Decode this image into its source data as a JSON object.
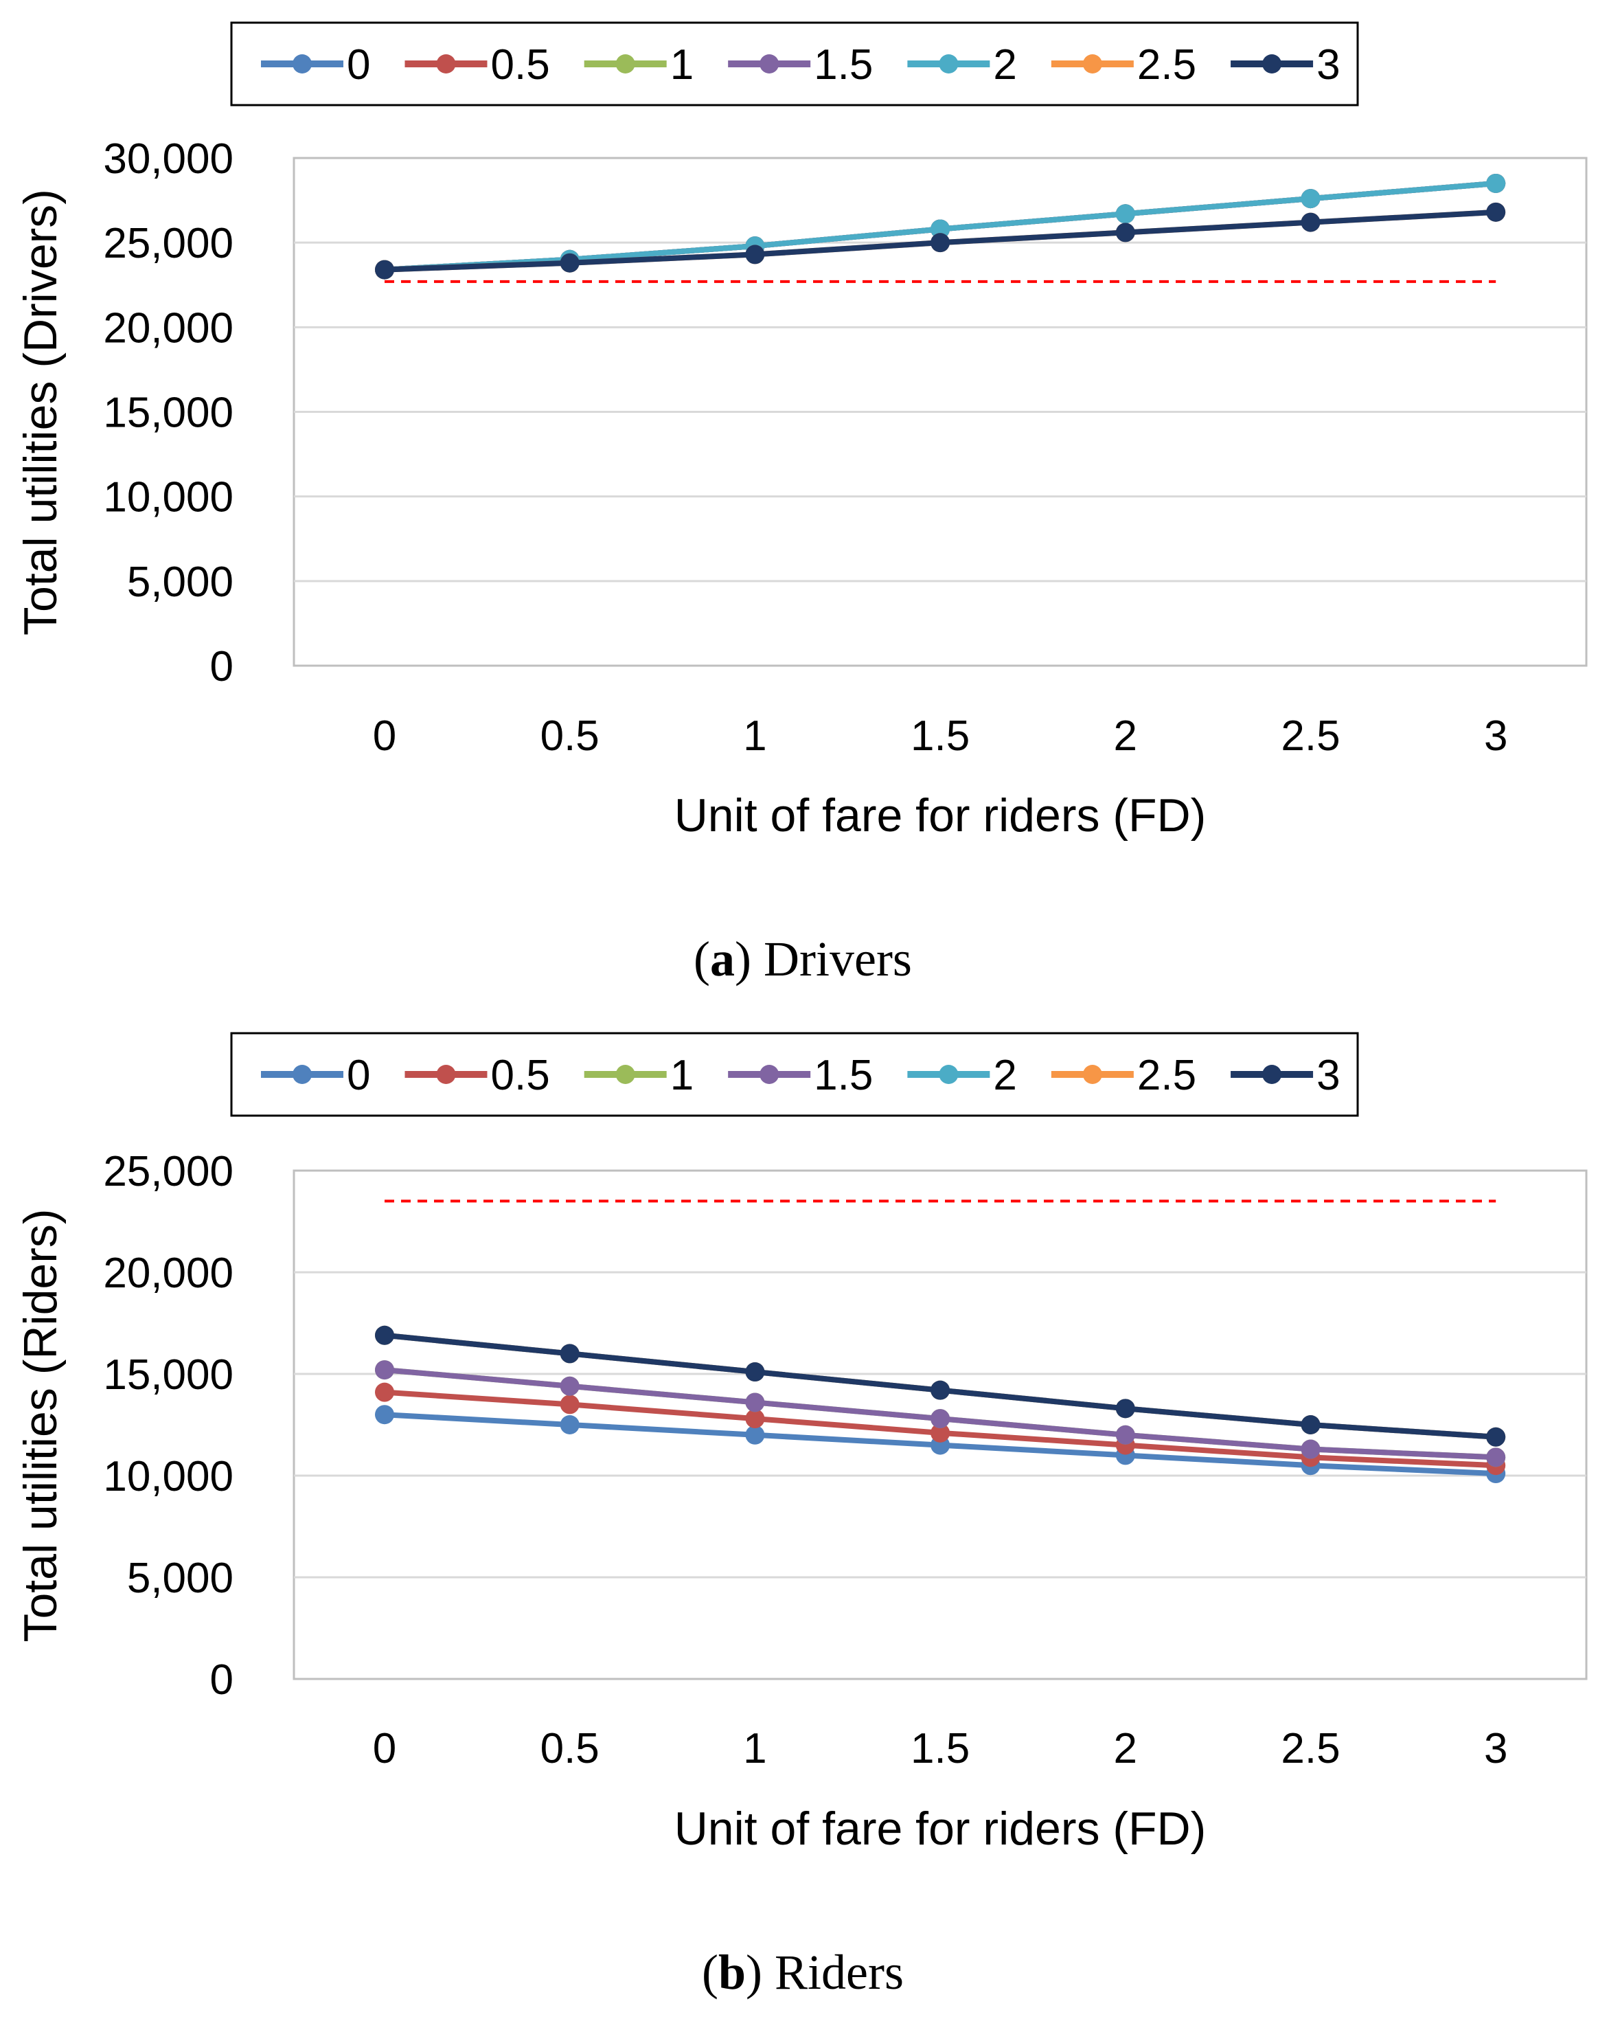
{
  "chart_data": [
    {
      "type": "line",
      "panel": "a",
      "caption_letter": "a",
      "caption_text": "Drivers",
      "xlabel": "Unit of fare for riders (FD)",
      "ylabel": "Total utilities (Drivers)",
      "x": [
        "0",
        "0.5",
        "1",
        "1.5",
        "2",
        "2.5",
        "3"
      ],
      "y_ticks": [
        "0",
        "5,000",
        "10,000",
        "15,000",
        "20,000",
        "25,000",
        "30,000"
      ],
      "ylim": [
        0,
        30000
      ],
      "grid": true,
      "legend_position": "top",
      "reference_line": {
        "value": 22700,
        "color": "#ff0000",
        "style": "dashed"
      },
      "series": [
        {
          "name": "0",
          "color": "#4f81bd",
          "values": [
            23400,
            24000,
            24800,
            25800,
            26700,
            27600,
            28500
          ]
        },
        {
          "name": "0.5",
          "color": "#c0504d",
          "values": [
            23400,
            24000,
            24800,
            25800,
            26700,
            27600,
            28500
          ]
        },
        {
          "name": "1",
          "color": "#9bbb59",
          "values": [
            23400,
            24000,
            24800,
            25800,
            26700,
            27600,
            28500
          ]
        },
        {
          "name": "1.5",
          "color": "#8064a2",
          "values": [
            23400,
            24000,
            24800,
            25800,
            26700,
            27600,
            28500
          ]
        },
        {
          "name": "2",
          "color": "#4bacc6",
          "values": [
            23400,
            24000,
            24800,
            25800,
            26700,
            27600,
            28500
          ]
        },
        {
          "name": "2.5",
          "color": "#f79646",
          "values": [
            23400,
            23800,
            24300,
            25000,
            25600,
            26200,
            26800
          ]
        },
        {
          "name": "3",
          "color": "#1f3864",
          "values": [
            23400,
            23800,
            24300,
            25000,
            25600,
            26200,
            26800
          ]
        }
      ]
    },
    {
      "type": "line",
      "panel": "b",
      "caption_letter": "b",
      "caption_text": "Riders",
      "xlabel": "Unit of fare for riders (FD)",
      "ylabel": "Total utilities (Riders)",
      "x": [
        "0",
        "0.5",
        "1",
        "1.5",
        "2",
        "2.5",
        "3"
      ],
      "y_ticks": [
        "0",
        "5,000",
        "10,000",
        "15,000",
        "20,000",
        "25,000"
      ],
      "ylim": [
        0,
        25000
      ],
      "grid": true,
      "legend_position": "top",
      "reference_line": {
        "value": 23500,
        "color": "#ff0000",
        "style": "dashed"
      },
      "series": [
        {
          "name": "0",
          "color": "#4f81bd",
          "values": [
            13000,
            12500,
            12000,
            11500,
            11000,
            10500,
            10100
          ]
        },
        {
          "name": "0.5",
          "color": "#c0504d",
          "values": [
            14100,
            13500,
            12800,
            12100,
            11500,
            10900,
            10500
          ]
        },
        {
          "name": "1",
          "color": "#9bbb59",
          "values": [
            15200,
            14400,
            13600,
            12800,
            12000,
            11300,
            10900
          ]
        },
        {
          "name": "1.5",
          "color": "#8064a2",
          "values": [
            15200,
            14400,
            13600,
            12800,
            12000,
            11300,
            10900
          ]
        },
        {
          "name": "2",
          "color": "#4bacc6",
          "values": [
            16900,
            16000,
            15100,
            14200,
            13300,
            12500,
            11900
          ]
        },
        {
          "name": "2.5",
          "color": "#f79646",
          "values": [
            16900,
            16000,
            15100,
            14200,
            13300,
            12500,
            11900
          ]
        },
        {
          "name": "3",
          "color": "#1f3864",
          "values": [
            16900,
            16000,
            15100,
            14200,
            13300,
            12500,
            11900
          ]
        }
      ]
    }
  ]
}
